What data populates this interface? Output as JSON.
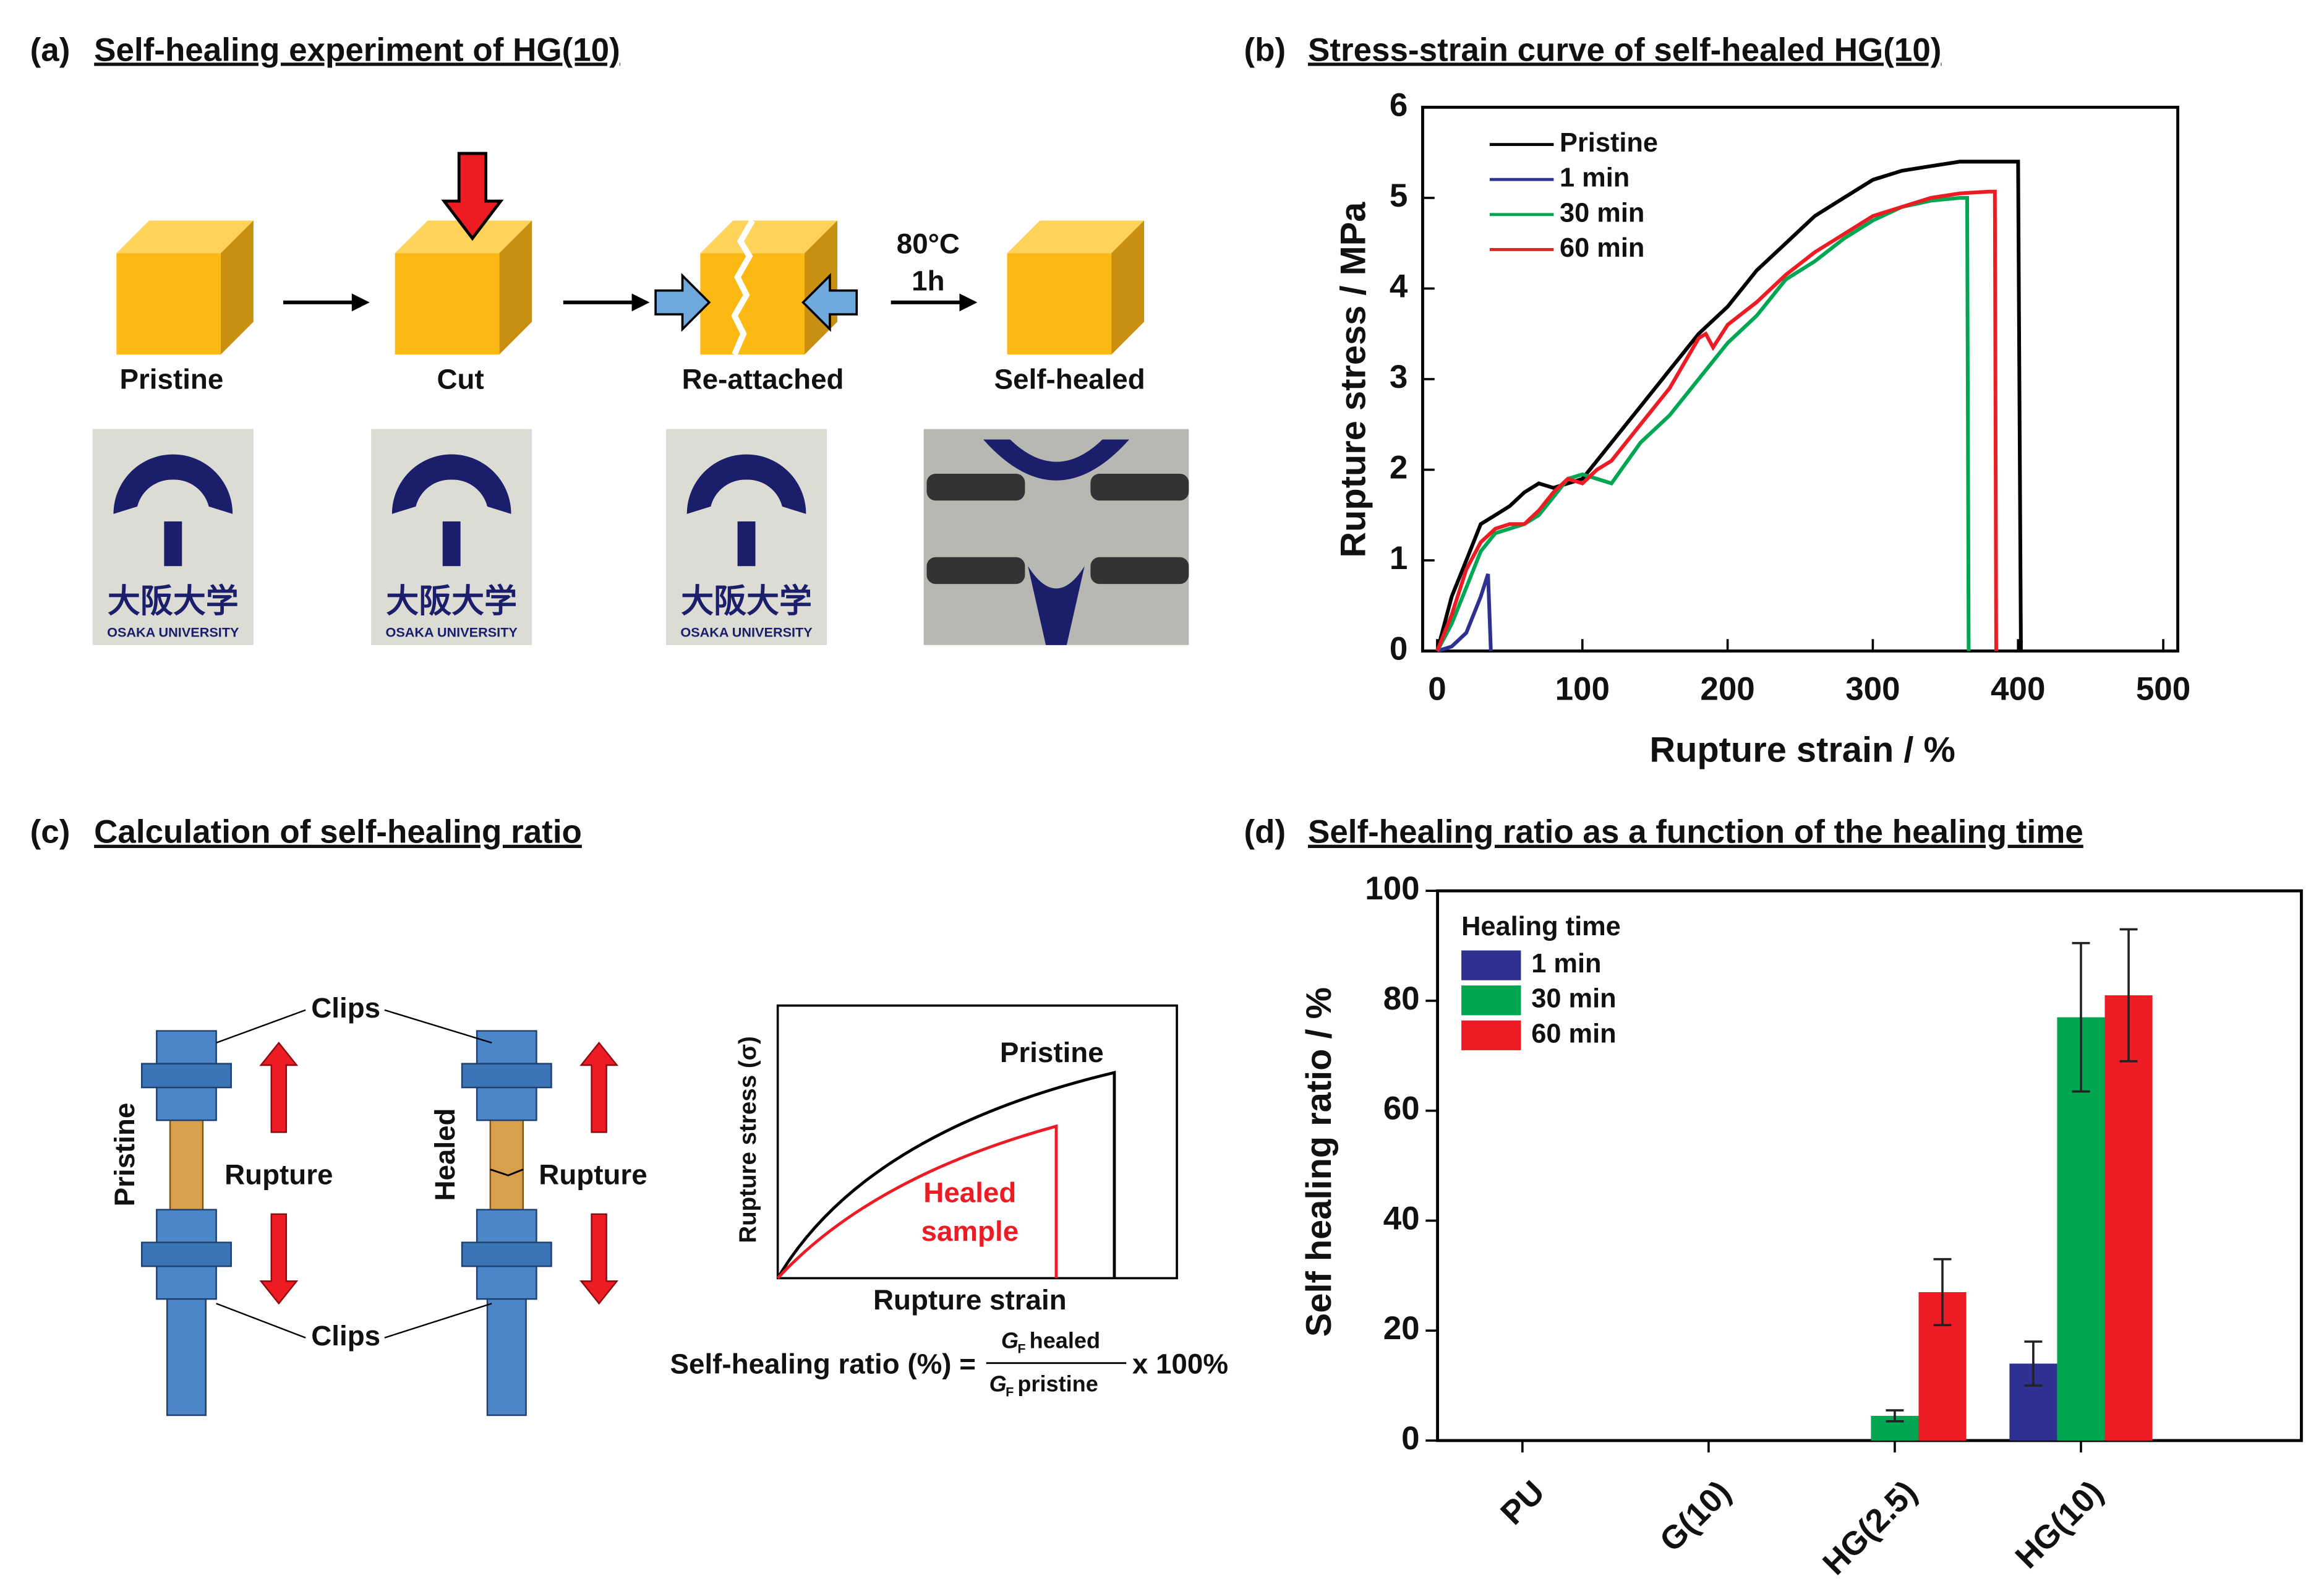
{
  "panels": {
    "a": {
      "label": "(a)",
      "title": "Self-healing experiment of HG(10)",
      "steps": [
        "Pristine",
        "Cut",
        "Re-attached",
        "Self-healed"
      ],
      "condition": [
        "80°C",
        "1h"
      ],
      "photo_text": [
        "大阪大学",
        "OSAKA UNIVERSITY"
      ]
    },
    "c": {
      "label": "(c)",
      "title": "Calculation of self-healing ratio",
      "clips": "Clips",
      "pristine": "Pristine",
      "healed": "Healed",
      "rupture": "Rupture",
      "sketch": {
        "ylabel": "Rupture stress (σ)",
        "xlabel": "Rupture strain",
        "pristine": "Pristine",
        "healed": [
          "Healed",
          "sample"
        ]
      },
      "formula": {
        "lhs": "Self-healing ratio (%) =",
        "symbol": "G",
        "subscript": "F",
        "numerator": "healed",
        "denominator": "pristine",
        "factor": "x 100%"
      }
    }
  },
  "chart_data": [
    {
      "type": "line",
      "label": "(b)",
      "title": "Stress-strain curve of self-healed HG(10)",
      "xlabel": "Rupture strain / %",
      "ylabel": "Rupture stress / MPa",
      "xlim": [
        -10,
        510
      ],
      "ylim": [
        0,
        6
      ],
      "xticks": [
        0,
        100,
        200,
        300,
        400,
        500
      ],
      "yticks": [
        0,
        1,
        2,
        3,
        4,
        5,
        6
      ],
      "legend": "upper left",
      "series": [
        {
          "name": "Pristine",
          "color": "#000000",
          "x": [
            0,
            10,
            20,
            30,
            40,
            50,
            60,
            70,
            80,
            90,
            100,
            120,
            140,
            160,
            180,
            200,
            220,
            240,
            260,
            280,
            300,
            320,
            340,
            360,
            380,
            400,
            402
          ],
          "values": [
            0,
            0.6,
            1.0,
            1.4,
            1.5,
            1.6,
            1.75,
            1.85,
            1.8,
            1.85,
            1.9,
            2.3,
            2.7,
            3.1,
            3.5,
            3.8,
            4.2,
            4.5,
            4.8,
            5.0,
            5.2,
            5.3,
            5.35,
            5.4,
            5.4,
            5.4,
            0
          ]
        },
        {
          "name": "1 min",
          "color": "#2e3192",
          "x": [
            0,
            10,
            20,
            30,
            35,
            37
          ],
          "values": [
            0,
            0.05,
            0.2,
            0.6,
            0.85,
            0
          ]
        },
        {
          "name": "30 min",
          "color": "#00a651",
          "x": [
            0,
            10,
            20,
            30,
            40,
            50,
            60,
            70,
            80,
            90,
            100,
            110,
            120,
            140,
            160,
            180,
            200,
            220,
            240,
            260,
            280,
            300,
            320,
            340,
            360,
            365,
            366
          ],
          "values": [
            0,
            0.3,
            0.7,
            1.1,
            1.3,
            1.35,
            1.4,
            1.5,
            1.7,
            1.9,
            1.95,
            1.9,
            1.85,
            2.3,
            2.6,
            3.0,
            3.4,
            3.7,
            4.1,
            4.3,
            4.55,
            4.75,
            4.9,
            4.97,
            5.0,
            5.0,
            0
          ]
        },
        {
          "name": "60 min",
          "color": "#ed1c24",
          "x": [
            0,
            10,
            20,
            30,
            40,
            50,
            60,
            70,
            80,
            90,
            100,
            110,
            120,
            140,
            160,
            180,
            185,
            190,
            200,
            220,
            240,
            260,
            280,
            300,
            320,
            340,
            360,
            380,
            384,
            385
          ],
          "values": [
            0,
            0.4,
            0.9,
            1.2,
            1.35,
            1.4,
            1.4,
            1.55,
            1.75,
            1.9,
            1.85,
            2.0,
            2.1,
            2.5,
            2.9,
            3.45,
            3.5,
            3.35,
            3.6,
            3.85,
            4.15,
            4.4,
            4.6,
            4.8,
            4.9,
            5.0,
            5.05,
            5.07,
            5.07,
            0
          ]
        }
      ]
    },
    {
      "type": "bar",
      "label": "(d)",
      "title": "Self-healing ratio as a function of the healing time",
      "ylabel": "Self healing ratio / %",
      "categories": [
        "PU",
        "G(10)",
        "HG(2.5)",
        "HG(10)"
      ],
      "ylim": [
        0,
        100
      ],
      "yticks": [
        0,
        20,
        40,
        60,
        80,
        100
      ],
      "legend": "upper left",
      "legend_title": "Healing time",
      "series": [
        {
          "name": "1 min",
          "color": "#2e3192",
          "values": [
            0,
            0,
            0,
            14
          ],
          "errors": [
            0,
            0,
            0,
            4
          ]
        },
        {
          "name": "30 min",
          "color": "#00a651",
          "values": [
            0,
            0,
            4.5,
            77
          ],
          "errors": [
            0,
            0,
            1,
            13.5
          ]
        },
        {
          "name": "60 min",
          "color": "#ed1c24",
          "values": [
            0,
            0,
            27,
            81
          ],
          "errors": [
            0,
            0,
            6,
            12
          ]
        }
      ]
    }
  ]
}
